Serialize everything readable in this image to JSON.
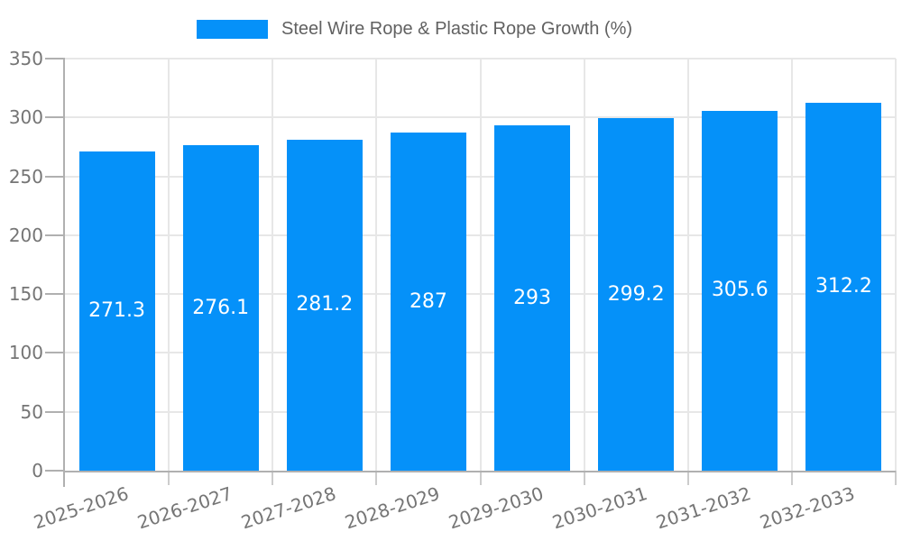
{
  "chart_data": {
    "type": "bar",
    "title": "Steel Wire Rope & Plastic Rope Growth (%)",
    "legend_position": "top",
    "categories": [
      "2025-2026",
      "2026-2027",
      "2027-2028",
      "2028-2029",
      "2029-2030",
      "2030-2031",
      "2031-2032",
      "2032-2033"
    ],
    "series": [
      {
        "name": "Steel Wire Rope & Plastic Rope Growth (%)",
        "values": [
          271.3,
          276.1,
          281.2,
          287,
          293,
          299.2,
          305.6,
          312.2
        ]
      }
    ],
    "value_labels": [
      "271.3",
      "276.1",
      "281.2",
      "287",
      "293",
      "299.2",
      "305.6",
      "312.2"
    ],
    "xlabel": "",
    "ylabel": "",
    "ylim": [
      0,
      350
    ],
    "yticks": [
      0,
      50,
      100,
      150,
      200,
      250,
      300,
      350
    ],
    "grid": true,
    "x_label_rotation_deg": -18,
    "colors": {
      "bar": "#0591f9",
      "axis_line": "#b0b0b0",
      "grid_line": "#e7e7e7",
      "minor_tick": "#cccccc",
      "axis_text": "#757575",
      "legend_text": "#616161",
      "value_text": "#ffffff",
      "background": "#ffffff"
    }
  }
}
